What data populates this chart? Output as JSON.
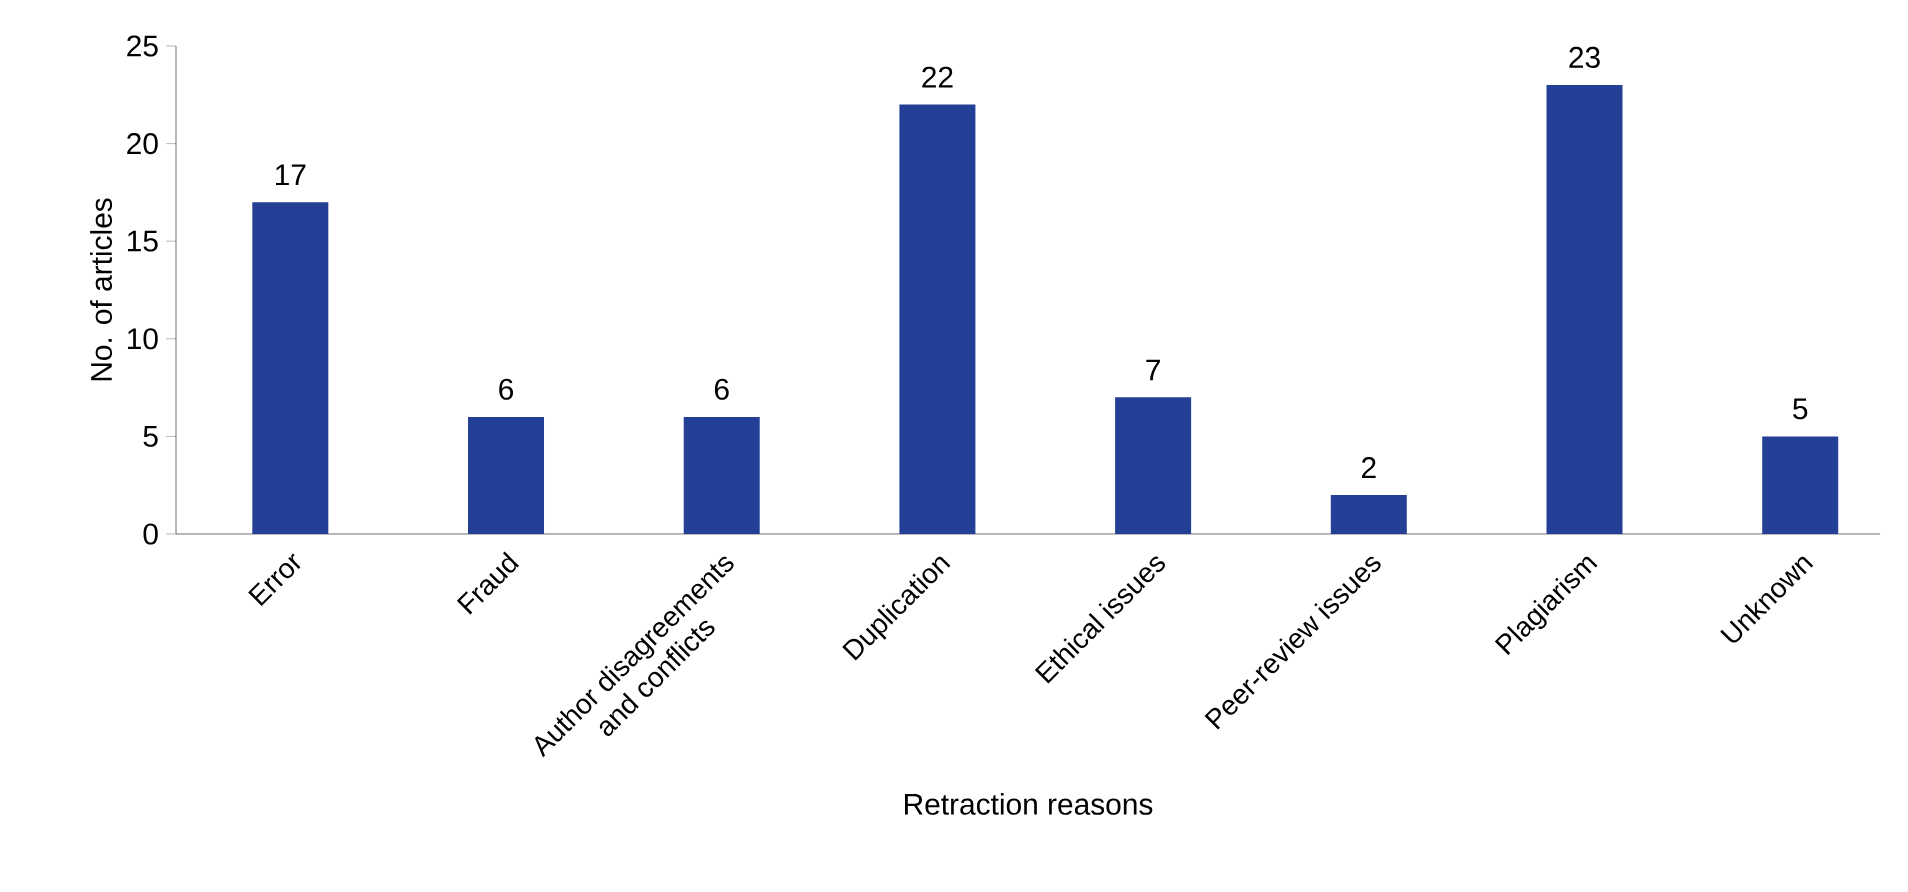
{
  "chart_data": {
    "type": "bar",
    "xlabel": "Retraction reasons",
    "ylabel": "No. of articles",
    "categories": [
      "Error",
      "Fraud",
      "Author disagreements and conflicts",
      "Duplication",
      "Ethical issues",
      "Peer-review issues",
      "Plagiarism",
      "Unknown"
    ],
    "values": [
      17,
      6,
      6,
      22,
      7,
      2,
      23,
      5
    ],
    "color": "#233f96",
    "data_labels": true,
    "ylim": [
      0,
      25
    ],
    "yticks": [
      0,
      5,
      10,
      15,
      20,
      25
    ]
  }
}
